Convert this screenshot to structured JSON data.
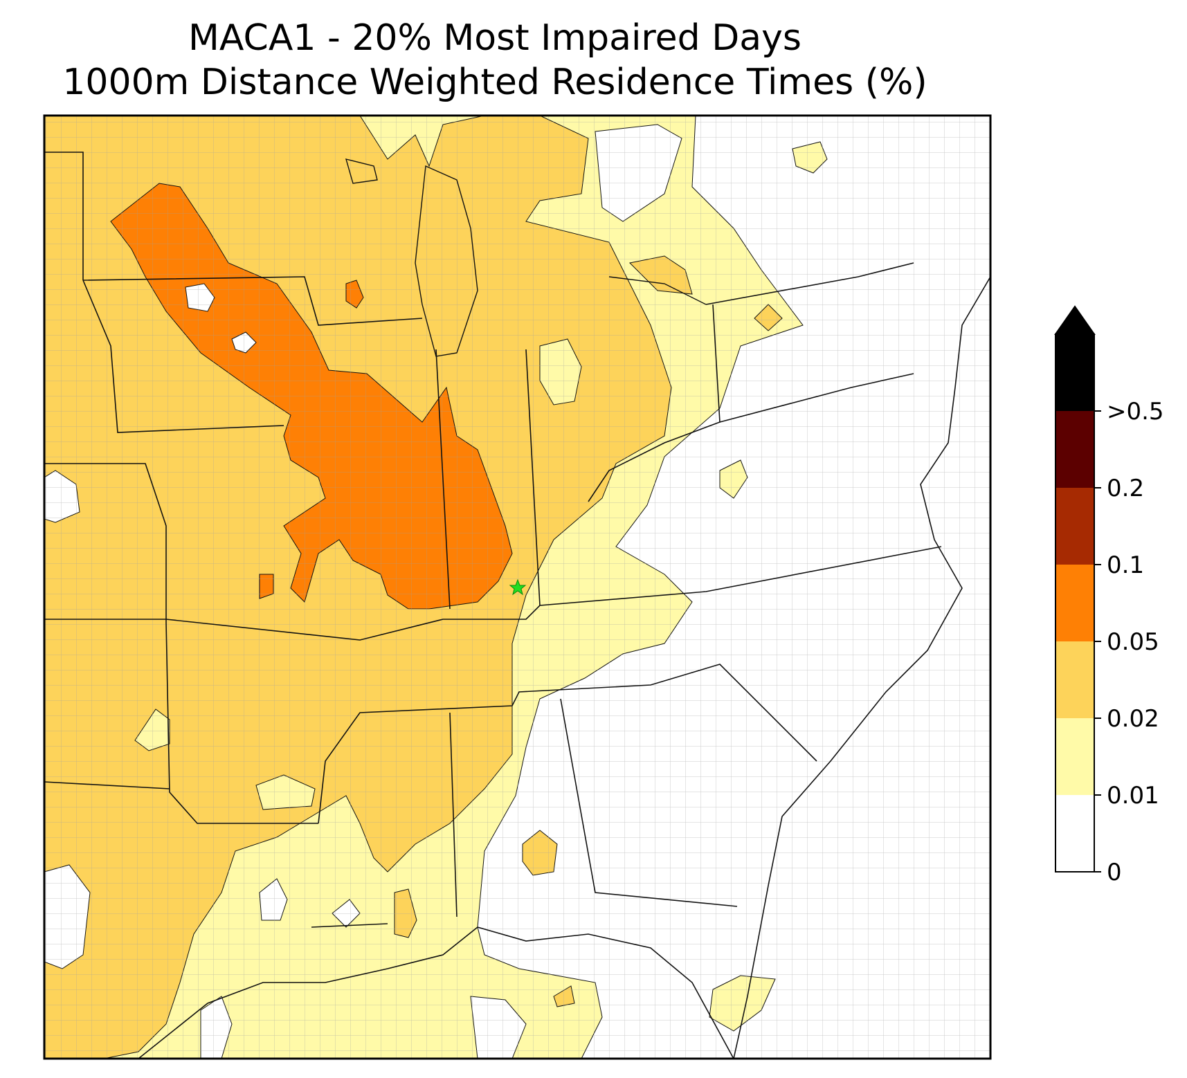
{
  "title_line1": "MACA1 - 20% Most Impaired Days",
  "title_line2": "1000m Distance Weighted Residence Times (%)",
  "colorbar": {
    "bins": [
      {
        "from": "0",
        "to": "0.01",
        "color": "#ffffff"
      },
      {
        "from": "0.01",
        "to": "0.02",
        "color": "#fffaa8"
      },
      {
        "from": "0.02",
        "to": "0.05",
        "color": "#fdd35a"
      },
      {
        "from": "0.05",
        "to": "0.1",
        "color": "#fe8005"
      },
      {
        "from": "0.1",
        "to": "0.2",
        "color": "#a62a02"
      },
      {
        "from": "0.2",
        "to": "0.5",
        "color": "#5c0000"
      },
      {
        "from": "0.5",
        "to": "",
        "color": "#000000"
      }
    ],
    "tick_labels": [
      "0",
      "0.01",
      "0.02",
      "0.05",
      "0.1",
      "0.2",
      ">0.5"
    ],
    "extend": "max"
  },
  "site_marker": {
    "label": "MACA1",
    "symbol": "star",
    "color": "#22dd22"
  },
  "colors": {
    "cat_0": "#ffffff",
    "cat_1": "#fffaa8",
    "cat_2": "#fdd35a",
    "cat_3": "#fe8005",
    "boundary": "#111111",
    "county": "#a0a0a0"
  }
}
